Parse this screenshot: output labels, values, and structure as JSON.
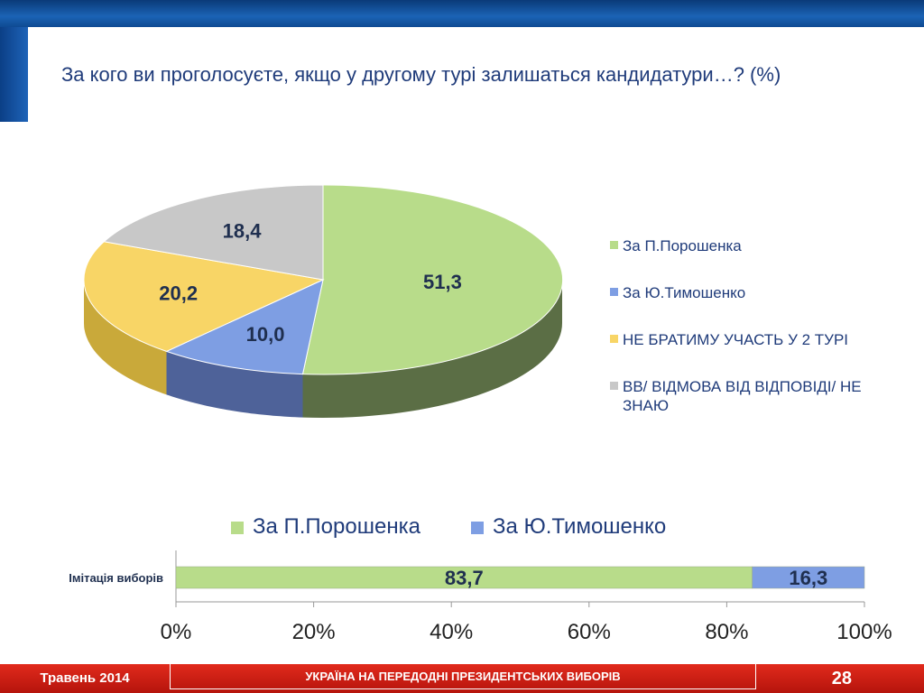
{
  "header": {
    "title": "За кого ви проголосуєте, якщо у другому турі залишаться кандидатури…? (%)"
  },
  "colors": {
    "poroshenko": "#b8dc8a",
    "tymoshenko": "#7e9ee3",
    "not_participating": "#f8d566",
    "dk_refuse": "#c8c8c8",
    "text": "#1f3b7a"
  },
  "chart_data": [
    {
      "type": "pie",
      "categories": [
        "За П.Порошенка",
        "За Ю.Тимошенко",
        "НЕ БРАТИМУ УЧАСТЬ У 2 ТУРІ",
        "ВВ/ ВІДМОВА ВІД ВІДПОВІДІ/ НЕ ЗНАЮ"
      ],
      "values": [
        51.3,
        10.0,
        20.2,
        18.4
      ],
      "labels": [
        "51,3",
        "10,0",
        "20,2",
        "18,4"
      ],
      "legend_position": "right"
    },
    {
      "type": "bar",
      "orientation": "horizontal-stacked",
      "categories": [
        "Імітація виборів"
      ],
      "series": [
        {
          "name": "За П.Порошенка",
          "values": [
            83.7
          ],
          "label": "83,7"
        },
        {
          "name": "За Ю.Тимошенко",
          "values": [
            16.3
          ],
          "label": "16,3"
        }
      ],
      "xlim": [
        0,
        100
      ],
      "x_ticks": [
        "0%",
        "20%",
        "40%",
        "60%",
        "80%",
        "100%"
      ],
      "legend_position": "top"
    }
  ],
  "footer": {
    "date": "Травень 2014",
    "center": "УКРАЇНА НА ПЕРЕДОДНІ ПРЕЗИДЕНТСЬКИХ ВИБОРІВ",
    "page": "28"
  }
}
